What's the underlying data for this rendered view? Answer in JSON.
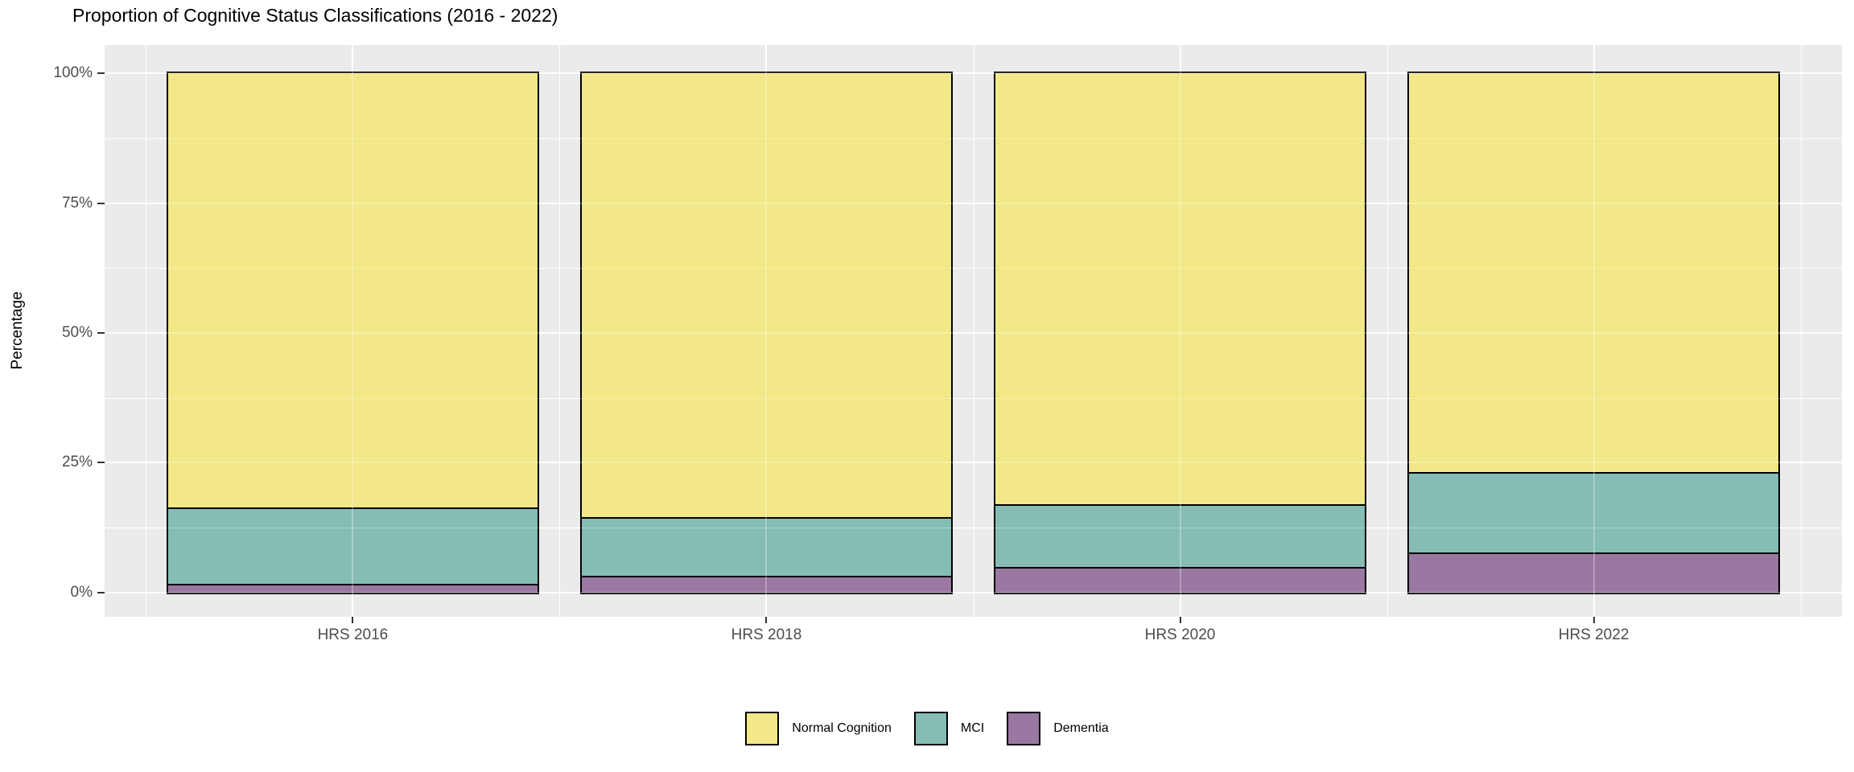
{
  "title": "Proportion of Cognitive Status Classifications (2016 - 2022)",
  "y_axis": {
    "label": "Percentage",
    "ticks": [
      {
        "label": "0%",
        "value": 0
      },
      {
        "label": "25%",
        "value": 25
      },
      {
        "label": "50%",
        "value": 50
      },
      {
        "label": "75%",
        "value": 75
      },
      {
        "label": "100%",
        "value": 100
      }
    ]
  },
  "x_axis": {
    "categories": [
      "HRS 2016",
      "HRS 2018",
      "HRS 2020",
      "HRS 2022"
    ]
  },
  "legend": {
    "position": "bottom",
    "items": [
      {
        "label": "Normal Cognition",
        "color": "#F2E887"
      },
      {
        "label": "MCI",
        "color": "#85BDB5"
      },
      {
        "label": "Dementia",
        "color": "#9A78A1"
      }
    ]
  },
  "chart_data": {
    "type": "bar",
    "stacked": true,
    "title": "Proportion of Cognitive Status Classifications (2016 - 2022)",
    "xlabel": "",
    "ylabel": "Percentage",
    "ylim": [
      0,
      100
    ],
    "grid": true,
    "legend_position": "bottom",
    "categories": [
      "HRS 2016",
      "HRS 2018",
      "HRS 2020",
      "HRS 2022"
    ],
    "stack_order_bottom_to_top": [
      "Dementia",
      "MCI",
      "Normal Cognition"
    ],
    "series": [
      {
        "name": "Normal Cognition",
        "color": "#F2E887",
        "values": [
          83.7,
          85.5,
          83.0,
          76.9
        ]
      },
      {
        "name": "MCI",
        "color": "#85BDB5",
        "values": [
          14.6,
          11.3,
          12.1,
          15.5
        ]
      },
      {
        "name": "Dementia",
        "color": "#9A78A1",
        "values": [
          1.7,
          3.2,
          4.9,
          7.6
        ]
      }
    ]
  },
  "colors": {
    "panel_background": "#EBEBEB",
    "gridline": "#FFFFFF",
    "bar_border": "#000000",
    "axis_text": "#4D4D4D",
    "tick_mark": "#333333",
    "title_text": "#000000",
    "page_background": "#FFFFFF"
  }
}
